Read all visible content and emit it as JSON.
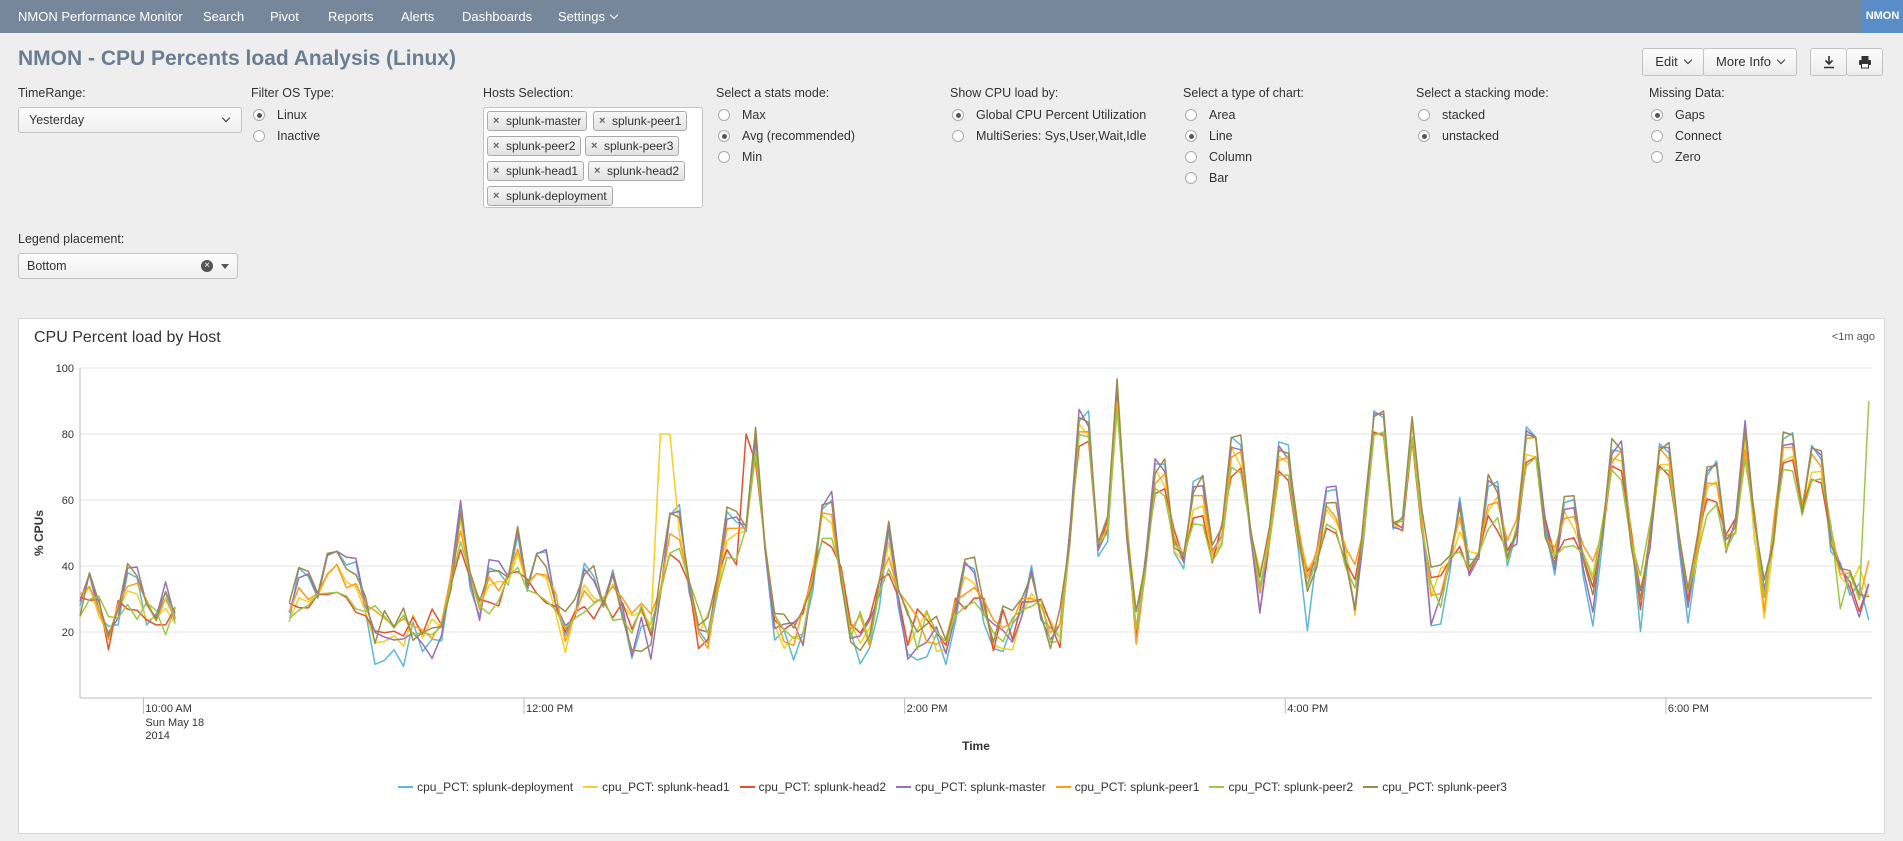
{
  "nav": {
    "app_name": "NMON Performance Monitor",
    "items": [
      "Search",
      "Pivot",
      "Reports",
      "Alerts",
      "Dashboards"
    ],
    "settings_label": "Settings",
    "brand": "NMON"
  },
  "header": {
    "title": "NMON - CPU Percents load Analysis (Linux)",
    "edit_label": "Edit",
    "more_info_label": "More Info"
  },
  "inputs": {
    "timerange": {
      "label": "TimeRange:",
      "value": "Yesterday"
    },
    "os_type": {
      "label": "Filter OS Type:",
      "options": [
        "Linux",
        "Inactive"
      ],
      "selected": "Linux"
    },
    "hosts": {
      "label": "Hosts Selection:",
      "tags": [
        "splunk-master",
        "splunk-peer1",
        "splunk-peer2",
        "splunk-peer3",
        "splunk-head1",
        "splunk-head2",
        "splunk-deployment"
      ]
    },
    "stats_mode": {
      "label": "Select a stats mode:",
      "options": [
        "Max",
        "Avg (recommended)",
        "Min"
      ],
      "selected": "Avg (recommended)"
    },
    "cpu_load_by": {
      "label": "Show CPU load by:",
      "options": [
        "Global CPU Percent Utilization",
        "MultiSeries: Sys,User,Wait,Idle"
      ],
      "selected": "Global CPU Percent Utilization"
    },
    "chart_type": {
      "label": "Select a type of chart:",
      "options": [
        "Area",
        "Line",
        "Column",
        "Bar"
      ],
      "selected": "Line"
    },
    "stacking": {
      "label": "Select a stacking mode:",
      "options": [
        "stacked",
        "unstacked"
      ],
      "selected": "unstacked"
    },
    "missing_data": {
      "label": "Missing Data:",
      "options": [
        "Gaps",
        "Connect",
        "Zero"
      ],
      "selected": "Gaps"
    },
    "legend_placement": {
      "label": "Legend placement:",
      "value": "Bottom"
    }
  },
  "panel": {
    "title": "CPU Percent load by Host",
    "updated": "<1m ago"
  },
  "chart_data": {
    "type": "line",
    "title": "CPU Percent load by Host",
    "xlabel": "Time",
    "ylabel": "% CPUs",
    "ylim": [
      0,
      100
    ],
    "yticks": [
      "20",
      "40",
      "60",
      "80",
      "100"
    ],
    "xticks": [
      {
        "label": "10:00 AM",
        "sub": [
          "Sun May 18",
          "2014"
        ],
        "time": "10:00"
      },
      {
        "label": "12:00 PM",
        "sub": [],
        "time": "12:00"
      },
      {
        "label": "2:00 PM",
        "sub": [],
        "time": "14:00"
      },
      {
        "label": "4:00 PM",
        "sub": [],
        "time": "16:00"
      },
      {
        "label": "6:00 PM",
        "sub": [],
        "time": "18:00"
      }
    ],
    "x_range": [
      "09:40",
      "19:05"
    ],
    "gap": [
      "10:10",
      "10:45"
    ],
    "grid": true,
    "legend_placement": "bottom",
    "series": [
      {
        "name": "cpu_PCT: splunk-deployment",
        "color": "#5cb8d6",
        "peak_times": [],
        "base": 22
      },
      {
        "name": "cpu_PCT: splunk-head1",
        "color": "#f6cf21",
        "peak_times": [
          "12:45"
        ],
        "base": 26
      },
      {
        "name": "cpu_PCT: splunk-head2",
        "color": "#e5512d",
        "peak_times": [
          "13:10"
        ],
        "base": 27
      },
      {
        "name": "cpu_PCT: splunk-master",
        "color": "#9a6fb8",
        "peak_times": [],
        "base": 24
      },
      {
        "name": "cpu_PCT: splunk-peer1",
        "color": "#ff9d1a",
        "peak_times": [],
        "base": 28
      },
      {
        "name": "cpu_PCT: splunk-peer2",
        "color": "#9bc845",
        "peak_times": [
          "19:05"
        ],
        "base": 27
      },
      {
        "name": "cpu_PCT: splunk-peer3",
        "color": "#998c4d",
        "peak_times": [],
        "base": 27
      }
    ],
    "peak_events": [
      {
        "time": "09:43",
        "value": 40
      },
      {
        "time": "09:57",
        "value": 38
      },
      {
        "time": "10:07",
        "value": 34
      },
      {
        "time": "10:50",
        "value": 38
      },
      {
        "time": "11:00",
        "value": 45
      },
      {
        "time": "11:05",
        "value": 40
      },
      {
        "time": "11:40",
        "value": 58
      },
      {
        "time": "11:50",
        "value": 40
      },
      {
        "time": "11:58",
        "value": 52
      },
      {
        "time": "12:05",
        "value": 42
      },
      {
        "time": "12:20",
        "value": 38
      },
      {
        "time": "12:28",
        "value": 38
      },
      {
        "time": "12:48",
        "value": 56
      },
      {
        "time": "13:05",
        "value": 55
      },
      {
        "time": "13:13",
        "value": 80
      },
      {
        "time": "13:35",
        "value": 60
      },
      {
        "time": "13:55",
        "value": 51
      },
      {
        "time": "14:20",
        "value": 40
      },
      {
        "time": "14:40",
        "value": 39
      },
      {
        "time": "14:57",
        "value": 85
      },
      {
        "time": "15:07",
        "value": 95
      },
      {
        "time": "15:20",
        "value": 71
      },
      {
        "time": "15:32",
        "value": 65
      },
      {
        "time": "15:45",
        "value": 77
      },
      {
        "time": "16:00",
        "value": 75
      },
      {
        "time": "16:15",
        "value": 62
      },
      {
        "time": "16:30",
        "value": 86
      },
      {
        "time": "16:40",
        "value": 86
      },
      {
        "time": "16:55",
        "value": 58
      },
      {
        "time": "17:05",
        "value": 65
      },
      {
        "time": "17:18",
        "value": 80
      },
      {
        "time": "17:30",
        "value": 60
      },
      {
        "time": "17:45",
        "value": 76
      },
      {
        "time": "18:00",
        "value": 77
      },
      {
        "time": "18:15",
        "value": 70
      },
      {
        "time": "18:25",
        "value": 82
      },
      {
        "time": "18:38",
        "value": 78
      },
      {
        "time": "18:48",
        "value": 75
      },
      {
        "time": "18:55",
        "value": 40
      }
    ]
  }
}
